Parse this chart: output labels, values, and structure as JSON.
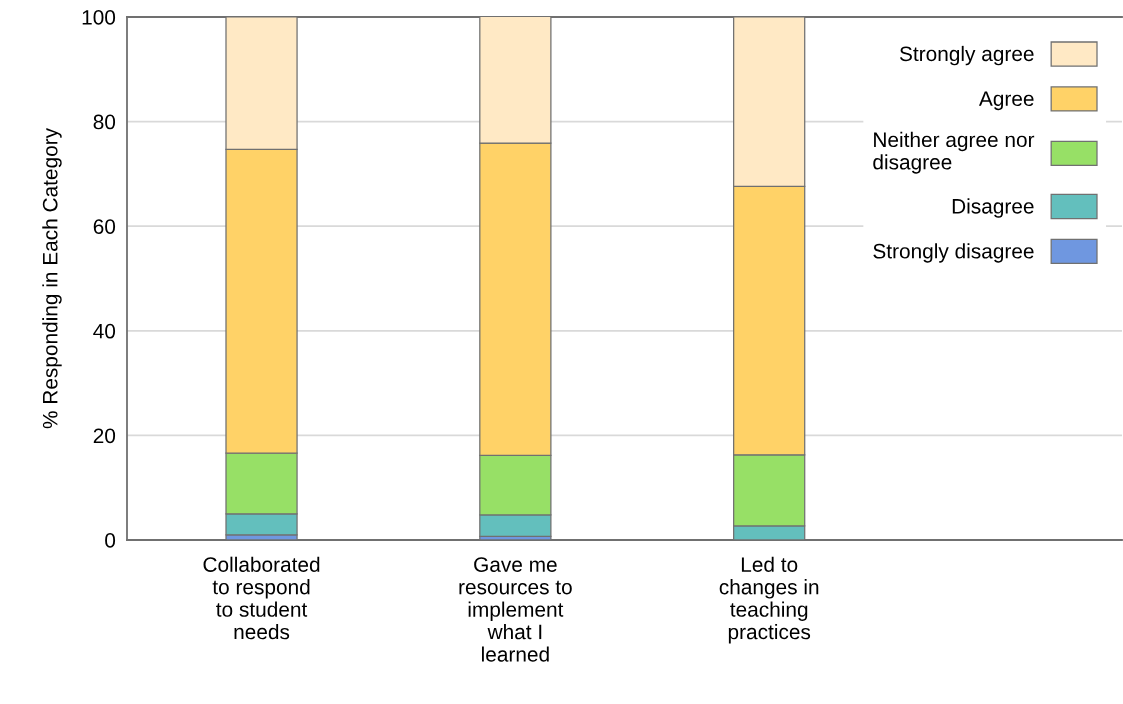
{
  "chart_data": {
    "type": "bar",
    "stacked": true,
    "ylabel": "% Responding in Each Category",
    "categories": [
      "Collaborated\nto respond\nto student\nneeds",
      "Gave me\nresources to\nimplement\nwhat I\nlearned",
      "Led to\nchanges in\nteaching\npractices"
    ],
    "series": [
      {
        "name": "Strongly disagree",
        "color": "#6f97e0",
        "values": [
          1.0,
          0.7,
          null
        ]
      },
      {
        "name": "Disagree",
        "color": "#63bfbd",
        "values": [
          4.0,
          4.1,
          2.7
        ]
      },
      {
        "name": "Neither agree nor\ndisagree",
        "color": "#97e066",
        "values": [
          11.6,
          11.4,
          13.6
        ]
      },
      {
        "name": "Agree",
        "color": "#ffd267",
        "values": [
          58.1,
          59.7,
          51.3
        ]
      },
      {
        "name": "Strongly agree",
        "color": "#ffe9c5",
        "values": [
          25.3,
          24.2,
          32.4
        ]
      }
    ],
    "ylim": [
      0,
      100
    ],
    "yticks": [
      0,
      20,
      40,
      60,
      80,
      100
    ],
    "grid": "y",
    "legend": "top right"
  }
}
